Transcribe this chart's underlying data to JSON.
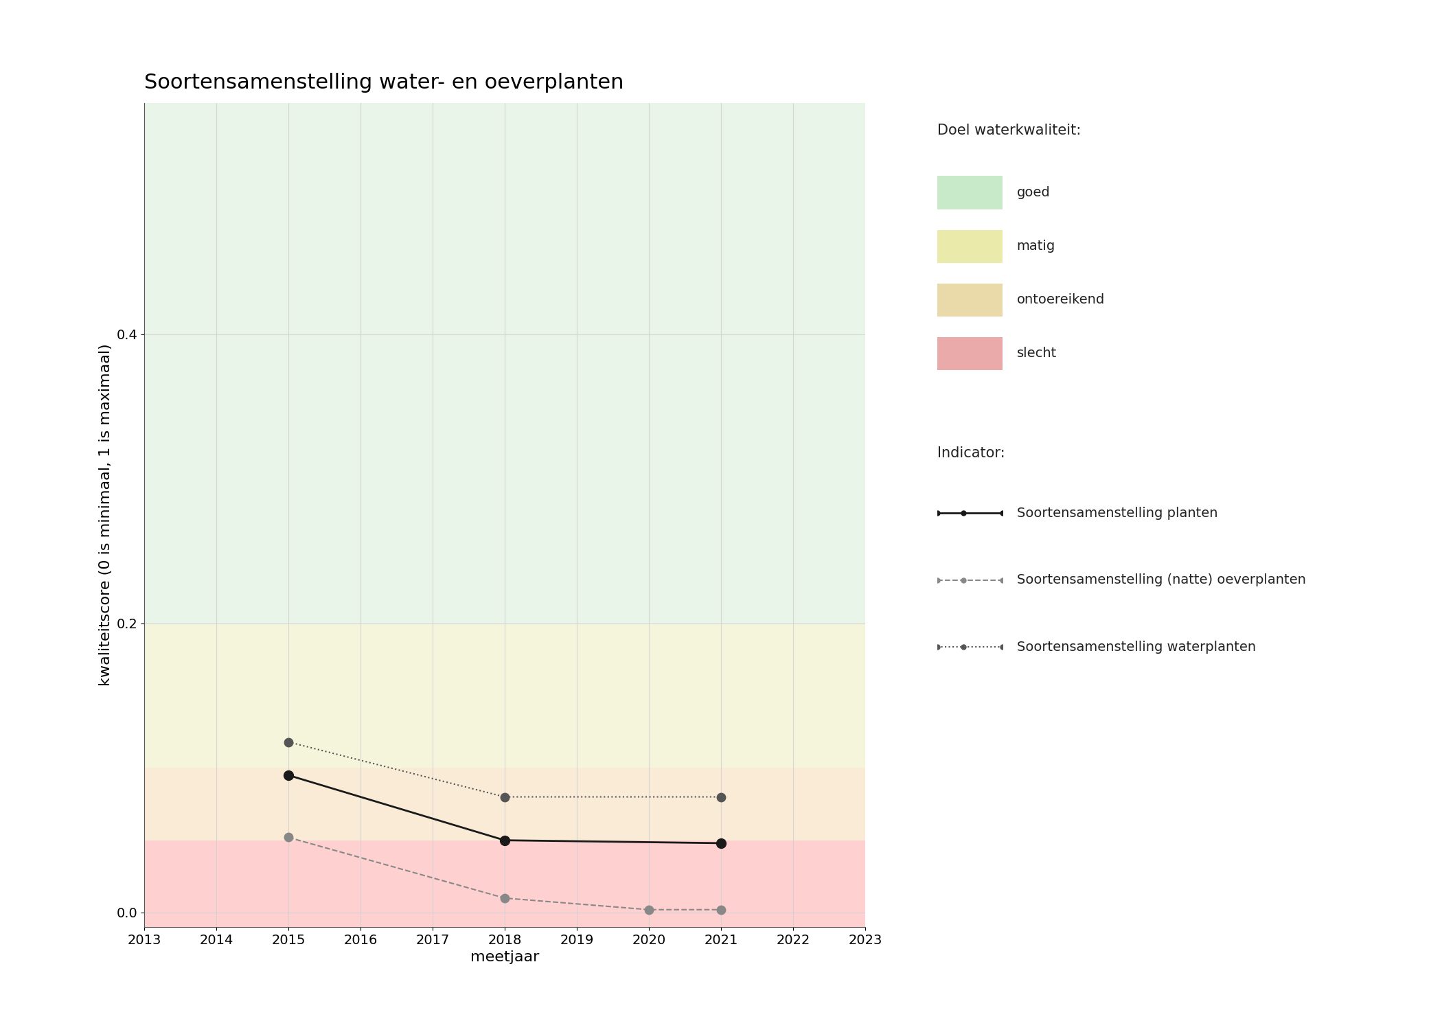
{
  "title": "Soortensamenstelling water- en oeverplanten",
  "xlabel": "meetjaar",
  "ylabel": "kwaliteitscore (0 is minimaal, 1 is maximaal)",
  "xlim": [
    2013,
    2023
  ],
  "ylim": [
    -0.01,
    0.56
  ],
  "yticks": [
    0.0,
    0.2,
    0.4
  ],
  "xticks": [
    2013,
    2014,
    2015,
    2016,
    2017,
    2018,
    2019,
    2020,
    2021,
    2022,
    2023
  ],
  "bg_color": "#ffffff",
  "quality_bands": {
    "goed": {
      "ymin": 0.2,
      "ymax": 0.56,
      "color": "#e8f5e8"
    },
    "matig": {
      "ymin": 0.1,
      "ymax": 0.2,
      "color": "#f5f5dc"
    },
    "ontoereikend": {
      "ymin": 0.05,
      "ymax": 0.1,
      "color": "#faebd7"
    },
    "slecht": {
      "ymin": -0.01,
      "ymax": 0.05,
      "color": "#ffd0d0"
    }
  },
  "legend_band_colors": {
    "goed": "#c8eac8",
    "matig": "#eaeaaa",
    "ontoereikend": "#eadaaa",
    "slecht": "#eaaaaa"
  },
  "series": {
    "planten": {
      "x": [
        2015,
        2018,
        2021
      ],
      "y": [
        0.095,
        0.05,
        0.048
      ],
      "color": "#1a1a1a",
      "linestyle": "-",
      "marker": "o",
      "markersize": 10,
      "linewidth": 2.0,
      "label": "Soortensamenstelling planten"
    },
    "oeverplanten": {
      "x": [
        2015,
        2018,
        2020,
        2021
      ],
      "y": [
        0.052,
        0.01,
        0.002,
        0.002
      ],
      "color": "#888888",
      "linestyle": "--",
      "marker": "o",
      "markersize": 9,
      "linewidth": 1.5,
      "label": "Soortensamenstelling (natte) oeverplanten"
    },
    "waterplanten": {
      "x": [
        2015,
        2018,
        2021
      ],
      "y": [
        0.118,
        0.08,
        0.08
      ],
      "color": "#555555",
      "linestyle": ":",
      "marker": "o",
      "markersize": 9,
      "linewidth": 1.5,
      "label": "Soortensamenstelling waterplanten"
    }
  },
  "grid_color": "#d0d0d0",
  "grid_alpha": 0.8,
  "title_fontsize": 22,
  "label_fontsize": 16,
  "tick_fontsize": 14,
  "legend_fontsize": 14,
  "legend_title_fontsize": 15
}
